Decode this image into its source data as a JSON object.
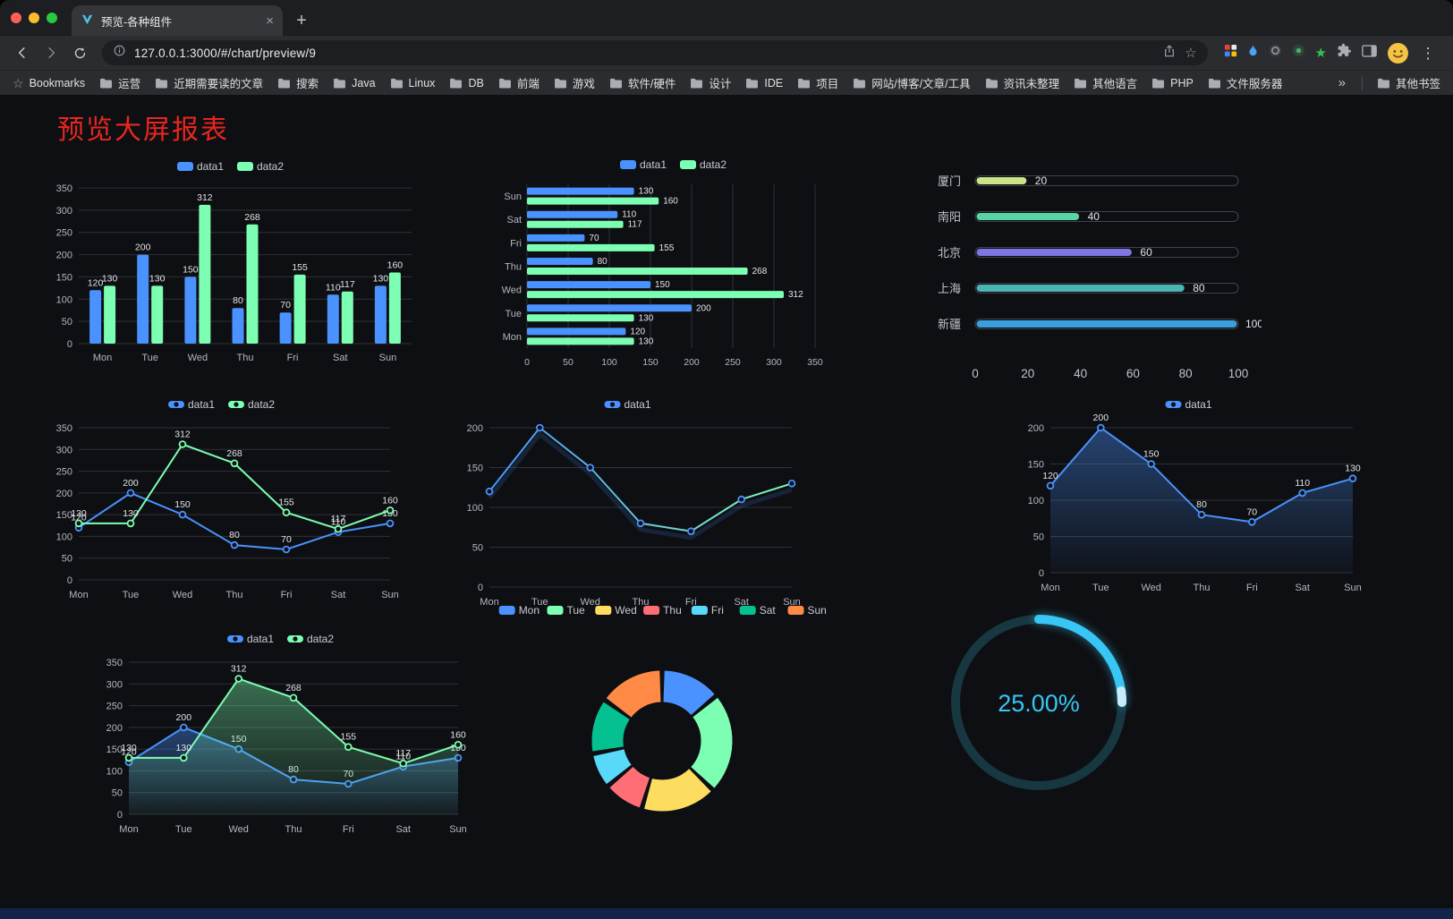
{
  "browser": {
    "tab_title": "预览-各种组件",
    "url": "127.0.0.1:3000/#/chart/preview/9",
    "bookmarks_label": "Bookmarks",
    "bookmarks": [
      "运营",
      "近期需要读的文章",
      "搜索",
      "Java",
      "Linux",
      "DB",
      "前端",
      "游戏",
      "软件/硬件",
      "设计",
      "IDE",
      "项目",
      "网站/博客/文章/工具",
      "资讯未整理",
      "其他语言",
      "PHP",
      "文件服务器"
    ],
    "bookmarks_overflow": "»",
    "other_bookmarks_label": "其他书签"
  },
  "page": {
    "title": "预览大屏报表",
    "title_color": "#e8261f"
  },
  "chart_data": [
    {
      "type": "bar",
      "legend": [
        "data1",
        "data2"
      ],
      "categories": [
        "Mon",
        "Tue",
        "Wed",
        "Thu",
        "Fri",
        "Sat",
        "Sun"
      ],
      "series": [
        {
          "name": "data1",
          "color": "#4992ff",
          "values": [
            120,
            200,
            150,
            80,
            70,
            110,
            130
          ]
        },
        {
          "name": "data2",
          "color": "#7cffb2",
          "values": [
            130,
            130,
            312,
            268,
            155,
            117,
            160
          ]
        }
      ],
      "ylim": [
        0,
        350
      ],
      "ytick": 50,
      "show_labels": true,
      "grid": true,
      "legend_position": "top"
    },
    {
      "type": "hbar",
      "legend": [
        "data1",
        "data2"
      ],
      "categories": [
        "Mon",
        "Tue",
        "Wed",
        "Thu",
        "Fri",
        "Sat",
        "Sun"
      ],
      "y_order": "Sun top, Mon bottom",
      "series": [
        {
          "name": "data1",
          "color": "#4992ff",
          "values": [
            120,
            200,
            150,
            80,
            70,
            110,
            130
          ]
        },
        {
          "name": "data2",
          "color": "#7cffb2",
          "values": [
            130,
            130,
            312,
            268,
            155,
            117,
            160
          ]
        }
      ],
      "xlim": [
        0,
        350
      ],
      "xtick": 50,
      "show_labels": true,
      "grid": true,
      "legend_position": "top"
    },
    {
      "type": "progress",
      "max": 100,
      "xticks": [
        0,
        20,
        40,
        60,
        80,
        100
      ],
      "items": [
        {
          "label": "厦门",
          "value": 20,
          "color": "#c9e587"
        },
        {
          "label": "南阳",
          "value": 40,
          "color": "#58d5a4"
        },
        {
          "label": "北京",
          "value": 60,
          "color": "#7f76e3"
        },
        {
          "label": "上海",
          "value": 80,
          "color": "#4ab5b1"
        },
        {
          "label": "新疆",
          "value": 100,
          "color": "#3a9fdd"
        }
      ]
    },
    {
      "type": "line",
      "legend": [
        "data1",
        "data2"
      ],
      "categories": [
        "Mon",
        "Tue",
        "Wed",
        "Thu",
        "Fri",
        "Sat",
        "Sun"
      ],
      "series": [
        {
          "name": "data1",
          "color": "#4992ff",
          "values": [
            120,
            200,
            150,
            80,
            70,
            110,
            130
          ]
        },
        {
          "name": "data2",
          "color": "#7cffb2",
          "values": [
            130,
            130,
            312,
            268,
            155,
            117,
            160
          ]
        }
      ],
      "ylim": [
        0,
        350
      ],
      "ytick": 50,
      "show_labels": true,
      "grid": true,
      "legend_position": "top"
    },
    {
      "type": "line",
      "legend": [
        "data1"
      ],
      "categories": [
        "Mon",
        "Tue",
        "Wed",
        "Thu",
        "Fri",
        "Sat",
        "Sun"
      ],
      "series": [
        {
          "name": "data1",
          "color": "#4992ff",
          "gradient_to": "#7cffb2",
          "values": [
            120,
            200,
            150,
            80,
            70,
            110,
            130
          ]
        }
      ],
      "ylim": [
        0,
        200
      ],
      "ytick": 50,
      "show_labels": false,
      "grid": true,
      "legend_position": "top"
    },
    {
      "type": "line",
      "legend": [
        "data1"
      ],
      "categories": [
        "Mon",
        "Tue",
        "Wed",
        "Thu",
        "Fri",
        "Sat",
        "Sun"
      ],
      "series": [
        {
          "name": "data1",
          "color": "#4992ff",
          "area": true,
          "values": [
            120,
            200,
            150,
            80,
            70,
            110,
            130
          ]
        }
      ],
      "ylim": [
        0,
        200
      ],
      "ytick": 50,
      "show_labels": true,
      "grid": true,
      "legend_position": "top"
    },
    {
      "type": "line",
      "legend": [
        "data1",
        "data2"
      ],
      "categories": [
        "Mon",
        "Tue",
        "Wed",
        "Thu",
        "Fri",
        "Sat",
        "Sun"
      ],
      "series": [
        {
          "name": "data1",
          "color": "#4992ff",
          "area": true,
          "values": [
            120,
            200,
            150,
            80,
            70,
            110,
            130
          ]
        },
        {
          "name": "data2",
          "color": "#7cffb2",
          "area": true,
          "values": [
            130,
            130,
            312,
            268,
            155,
            117,
            160
          ]
        }
      ],
      "ylim": [
        0,
        350
      ],
      "ytick": 50,
      "show_labels": true,
      "grid": true,
      "legend_position": "top"
    },
    {
      "type": "donut",
      "legend": [
        "Mon",
        "Tue",
        "Wed",
        "Thu",
        "Fri",
        "Sat",
        "Sun"
      ],
      "values": [
        120,
        200,
        150,
        80,
        70,
        110,
        130
      ],
      "colors": [
        "#4992ff",
        "#7cffb2",
        "#fddd60",
        "#ff6e76",
        "#58d9f9",
        "#05c091",
        "#ff8a45"
      ],
      "legend_position": "top"
    },
    {
      "type": "gauge",
      "value": 25,
      "label": "25.00%",
      "color": "#38c6f4",
      "track": "#173741"
    }
  ]
}
